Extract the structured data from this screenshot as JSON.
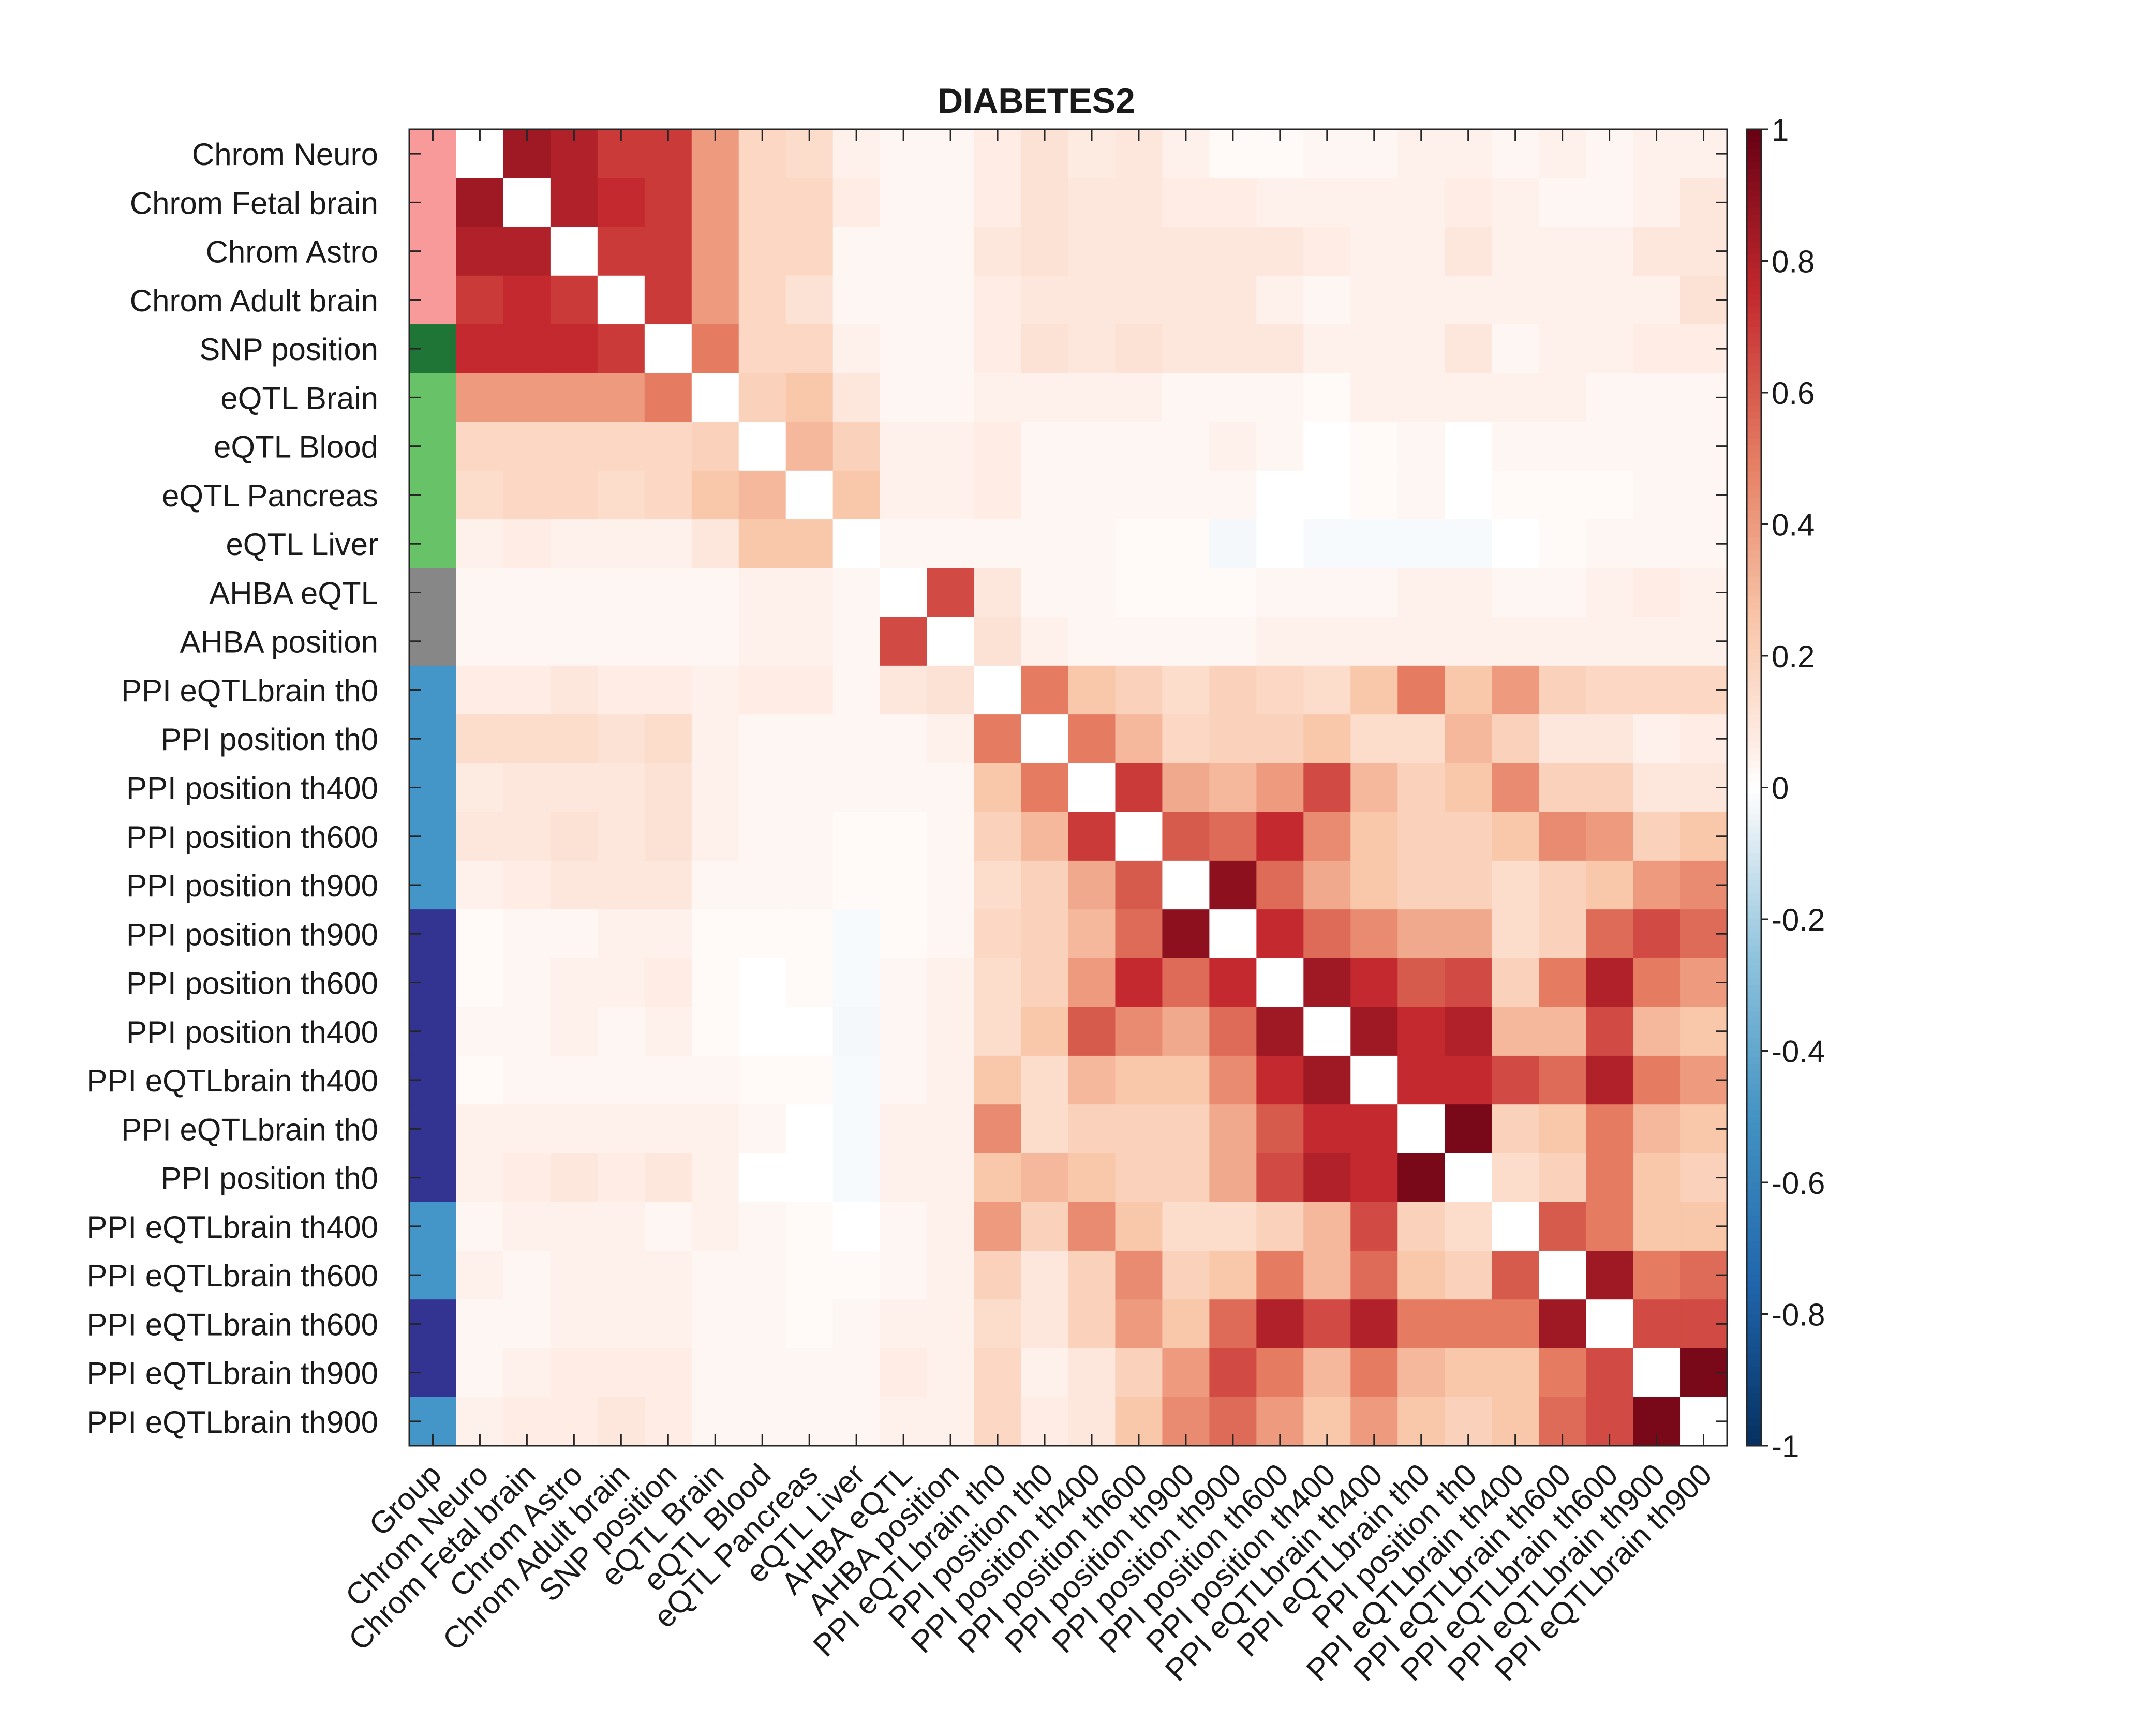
{
  "chart_data": {
    "type": "heatmap",
    "title": "DIABETES2",
    "xlabel": "",
    "ylabel": "",
    "x_tick_labels": [
      "Group",
      "Chrom Neuro",
      "Chrom Fetal brain",
      "Chrom Astro",
      "Chrom Adult brain",
      "SNP position",
      "eQTL Brain",
      "eQTL Blood",
      "eQTL Pancreas",
      "eQTL Liver",
      "AHBA eQTL",
      "AHBA position",
      "PPI eQTLbrain th0",
      "PPI position th0",
      "PPI position th400",
      "PPI position th600",
      "PPI position th900",
      "PPI position th900",
      "PPI position th600",
      "PPI position th400",
      "PPI eQTLbrain th400",
      "PPI eQTLbrain th0",
      "PPI position th0",
      "PPI eQTLbrain th400",
      "PPI eQTLbrain th600",
      "PPI eQTLbrain th600",
      "PPI eQTLbrain th900",
      "PPI eQTLbrain th900"
    ],
    "y_tick_labels": [
      "Chrom Neuro",
      "Chrom Fetal brain",
      "Chrom Astro",
      "Chrom Adult brain",
      "SNP position",
      "eQTL Brain",
      "eQTL Blood",
      "eQTL Pancreas",
      "eQTL Liver",
      "AHBA eQTL",
      "AHBA position",
      "PPI eQTLbrain th0",
      "PPI position th0",
      "PPI position th400",
      "PPI position th600",
      "PPI position th900",
      "PPI position th900",
      "PPI position th600",
      "PPI position th400",
      "PPI eQTLbrain th400",
      "PPI eQTLbrain th0",
      "PPI position th0",
      "PPI eQTLbrain th400",
      "PPI eQTLbrain th600",
      "PPI eQTLbrain th600",
      "PPI eQTLbrain th900",
      "PPI eQTLbrain th900"
    ],
    "group_colors": [
      "#f99a9a",
      "#f99a9a",
      "#f99a9a",
      "#f99a9a",
      "#1e7535",
      "#68c267",
      "#68c267",
      "#68c267",
      "#68c267",
      "#878787",
      "#878787",
      "#4496c9",
      "#4496c9",
      "#4496c9",
      "#4496c9",
      "#4496c9",
      "#333391",
      "#333391",
      "#333391",
      "#333391",
      "#333391",
      "#333391",
      "#4496c9",
      "#4496c9",
      "#333391",
      "#333391",
      "#4496c9"
    ],
    "colorbar": {
      "range": [
        -1,
        1
      ],
      "tick_labels": [
        "1",
        "0.8",
        "0.6",
        "0.4",
        "0.2",
        "0",
        "-0.2",
        "-0.4",
        "-0.6",
        "-0.8",
        "-1"
      ],
      "tick_values": [
        1,
        0.8,
        0.6,
        0.4,
        0.2,
        0,
        -0.2,
        -0.4,
        -0.6,
        -0.8,
        -1
      ]
    },
    "colormap": "diverging blue-white-red",
    "values": [
      [
        null,
        0.85,
        0.8,
        0.7,
        0.7,
        0.4,
        0.17,
        0.15,
        0.05,
        0.03,
        0.03,
        0.07,
        0.12,
        0.08,
        0.1,
        0.05,
        0.02,
        0.02,
        0.03,
        0.03,
        0.05,
        0.05,
        0.03,
        0.05,
        0.03,
        0.05,
        0.05
      ],
      [
        0.85,
        null,
        0.8,
        0.75,
        0.7,
        0.4,
        0.17,
        0.17,
        0.07,
        0.03,
        0.03,
        0.07,
        0.12,
        0.1,
        0.1,
        0.07,
        0.07,
        0.05,
        0.05,
        0.05,
        0.05,
        0.07,
        0.05,
        0.03,
        0.03,
        0.05,
        0.1
      ],
      [
        0.8,
        0.8,
        null,
        0.7,
        0.7,
        0.4,
        0.17,
        0.17,
        0.03,
        0.03,
        0.03,
        0.1,
        0.12,
        0.1,
        0.1,
        0.1,
        0.1,
        0.1,
        0.07,
        0.05,
        0.05,
        0.1,
        0.05,
        0.05,
        0.05,
        0.1,
        0.1
      ],
      [
        0.7,
        0.75,
        0.7,
        null,
        0.7,
        0.4,
        0.17,
        0.12,
        0.03,
        0.03,
        0.03,
        0.07,
        0.1,
        0.1,
        0.1,
        0.1,
        0.1,
        0.05,
        0.03,
        0.05,
        0.05,
        0.05,
        0.05,
        0.05,
        0.05,
        0.05,
        0.12
      ],
      [
        0.75,
        0.75,
        0.75,
        0.7,
        null,
        0.5,
        0.17,
        0.17,
        0.05,
        0.03,
        0.03,
        0.07,
        0.12,
        0.1,
        0.12,
        0.1,
        0.1,
        0.1,
        0.05,
        0.05,
        0.05,
        0.1,
        0.03,
        0.05,
        0.05,
        0.07,
        0.07
      ],
      [
        0.4,
        0.4,
        0.4,
        0.4,
        0.5,
        null,
        0.2,
        0.25,
        0.1,
        0.03,
        0.03,
        0.05,
        0.05,
        0.05,
        0.05,
        0.03,
        0.03,
        0.03,
        0.02,
        0.05,
        0.05,
        0.05,
        0.05,
        0.05,
        0.03,
        0.03,
        0.03
      ],
      [
        0.17,
        0.17,
        0.17,
        0.17,
        0.17,
        0.2,
        null,
        0.3,
        0.2,
        0.05,
        0.05,
        0.07,
        0.03,
        0.03,
        0.03,
        0.03,
        0.05,
        0.03,
        0.0,
        0.02,
        0.03,
        0.0,
        0.03,
        0.03,
        0.03,
        0.03,
        0.03
      ],
      [
        0.15,
        0.17,
        0.17,
        0.15,
        0.17,
        0.25,
        0.3,
        null,
        0.25,
        0.05,
        0.05,
        0.07,
        0.03,
        0.03,
        0.03,
        0.03,
        0.03,
        0.0,
        0.0,
        0.02,
        0.03,
        0.0,
        0.02,
        0.02,
        0.02,
        0.03,
        0.03
      ],
      [
        0.05,
        0.07,
        0.05,
        0.05,
        0.05,
        0.1,
        0.25,
        0.25,
        null,
        0.03,
        0.03,
        0.03,
        0.03,
        0.03,
        0.02,
        0.02,
        -0.03,
        0.0,
        -0.02,
        -0.02,
        -0.02,
        -0.02,
        0.0,
        0.02,
        0.03,
        0.03,
        0.03
      ],
      [
        0.03,
        0.03,
        0.03,
        0.03,
        0.03,
        0.03,
        0.05,
        0.05,
        0.03,
        null,
        0.65,
        0.1,
        0.03,
        0.03,
        0.02,
        0.02,
        0.02,
        0.03,
        0.03,
        0.03,
        0.05,
        0.05,
        0.03,
        0.03,
        0.05,
        0.07,
        0.05
      ],
      [
        0.03,
        0.03,
        0.03,
        0.03,
        0.03,
        0.03,
        0.05,
        0.05,
        0.03,
        0.65,
        null,
        0.12,
        0.05,
        0.03,
        0.03,
        0.03,
        0.03,
        0.05,
        0.05,
        0.05,
        0.05,
        0.05,
        0.05,
        0.05,
        0.05,
        0.05,
        0.05
      ],
      [
        0.07,
        0.07,
        0.1,
        0.07,
        0.07,
        0.05,
        0.07,
        0.07,
        0.03,
        0.1,
        0.12,
        null,
        0.5,
        0.25,
        0.2,
        0.15,
        0.2,
        0.17,
        0.15,
        0.25,
        0.5,
        0.25,
        0.4,
        0.2,
        0.17,
        0.17,
        0.17
      ],
      [
        0.15,
        0.15,
        0.15,
        0.12,
        0.15,
        0.05,
        0.03,
        0.03,
        0.03,
        0.03,
        0.05,
        0.5,
        null,
        0.5,
        0.3,
        0.17,
        0.2,
        0.2,
        0.25,
        0.15,
        0.15,
        0.3,
        0.2,
        0.1,
        0.1,
        0.05,
        0.07
      ],
      [
        0.08,
        0.1,
        0.1,
        0.1,
        0.12,
        0.05,
        0.03,
        0.03,
        0.03,
        0.03,
        0.03,
        0.25,
        0.5,
        null,
        0.7,
        0.35,
        0.3,
        0.4,
        0.65,
        0.3,
        0.2,
        0.25,
        0.45,
        0.2,
        0.2,
        0.1,
        0.1
      ],
      [
        0.1,
        0.1,
        0.12,
        0.1,
        0.12,
        0.05,
        0.03,
        0.03,
        0.02,
        0.02,
        0.03,
        0.2,
        0.3,
        0.7,
        null,
        0.6,
        0.55,
        0.75,
        0.45,
        0.25,
        0.2,
        0.2,
        0.25,
        0.45,
        0.4,
        0.2,
        0.25
      ],
      [
        0.05,
        0.07,
        0.1,
        0.1,
        0.1,
        0.03,
        0.03,
        0.03,
        0.02,
        0.02,
        0.03,
        0.15,
        0.2,
        0.35,
        0.6,
        null,
        0.9,
        0.55,
        0.35,
        0.25,
        0.2,
        0.2,
        0.15,
        0.2,
        0.25,
        0.4,
        0.45
      ],
      [
        0.02,
        0.03,
        0.03,
        0.05,
        0.05,
        0.02,
        0.02,
        0.02,
        -0.02,
        0.02,
        0.03,
        0.17,
        0.2,
        0.3,
        0.55,
        0.9,
        null,
        0.75,
        0.55,
        0.45,
        0.35,
        0.35,
        0.15,
        0.2,
        0.55,
        0.65,
        0.55
      ],
      [
        0.02,
        0.03,
        0.05,
        0.05,
        0.07,
        0.02,
        0.0,
        0.02,
        -0.02,
        0.03,
        0.05,
        0.15,
        0.2,
        0.4,
        0.75,
        0.55,
        0.75,
        null,
        0.85,
        0.75,
        0.6,
        0.65,
        0.2,
        0.5,
        0.8,
        0.5,
        0.4
      ],
      [
        0.03,
        0.03,
        0.05,
        0.03,
        0.05,
        0.02,
        0.0,
        0.0,
        -0.03,
        0.03,
        0.05,
        0.15,
        0.25,
        0.6,
        0.45,
        0.35,
        0.55,
        0.85,
        null,
        0.85,
        0.75,
        0.8,
        0.3,
        0.3,
        0.65,
        0.3,
        0.25
      ],
      [
        0.02,
        0.03,
        0.03,
        0.03,
        0.03,
        0.03,
        0.02,
        0.02,
        -0.02,
        0.03,
        0.05,
        0.25,
        0.15,
        0.3,
        0.25,
        0.25,
        0.45,
        0.75,
        0.85,
        null,
        0.75,
        0.75,
        0.65,
        0.55,
        0.8,
        0.5,
        0.4
      ],
      [
        0.05,
        0.05,
        0.05,
        0.05,
        0.05,
        0.05,
        0.03,
        0.0,
        -0.02,
        0.05,
        0.05,
        0.45,
        0.15,
        0.2,
        0.2,
        0.2,
        0.35,
        0.6,
        0.75,
        0.75,
        null,
        0.95,
        0.2,
        0.25,
        0.5,
        0.3,
        0.25
      ],
      [
        0.05,
        0.07,
        0.1,
        0.07,
        0.1,
        0.05,
        0.0,
        0.0,
        -0.02,
        0.05,
        0.05,
        0.25,
        0.3,
        0.25,
        0.2,
        0.2,
        0.35,
        0.65,
        0.8,
        0.75,
        0.95,
        null,
        0.15,
        0.2,
        0.5,
        0.25,
        0.2
      ],
      [
        0.03,
        0.05,
        0.05,
        0.05,
        0.03,
        0.05,
        0.03,
        0.02,
        0.0,
        0.03,
        0.05,
        0.4,
        0.2,
        0.45,
        0.25,
        0.15,
        0.15,
        0.2,
        0.3,
        0.65,
        0.2,
        0.15,
        null,
        0.6,
        0.5,
        0.25,
        0.25
      ],
      [
        0.05,
        0.03,
        0.05,
        0.05,
        0.05,
        0.03,
        0.03,
        0.02,
        0.02,
        0.03,
        0.05,
        0.2,
        0.1,
        0.2,
        0.45,
        0.2,
        0.25,
        0.5,
        0.3,
        0.55,
        0.25,
        0.2,
        0.6,
        null,
        0.85,
        0.5,
        0.55
      ],
      [
        0.03,
        0.03,
        0.05,
        0.05,
        0.05,
        0.03,
        0.03,
        0.02,
        0.03,
        0.05,
        0.05,
        0.15,
        0.1,
        0.2,
        0.4,
        0.25,
        0.55,
        0.8,
        0.65,
        0.8,
        0.5,
        0.5,
        0.5,
        0.85,
        null,
        0.65,
        0.65
      ],
      [
        0.03,
        0.05,
        0.07,
        0.07,
        0.07,
        0.03,
        0.03,
        0.03,
        0.03,
        0.07,
        0.05,
        0.17,
        0.05,
        0.1,
        0.2,
        0.4,
        0.65,
        0.5,
        0.3,
        0.5,
        0.3,
        0.25,
        0.25,
        0.5,
        0.65,
        null,
        0.95
      ],
      [
        0.05,
        0.07,
        0.07,
        0.1,
        0.07,
        0.03,
        0.03,
        0.03,
        0.03,
        0.05,
        0.05,
        0.17,
        0.07,
        0.1,
        0.25,
        0.45,
        0.55,
        0.4,
        0.25,
        0.4,
        0.25,
        0.2,
        0.25,
        0.55,
        0.65,
        0.95,
        null
      ]
    ]
  }
}
